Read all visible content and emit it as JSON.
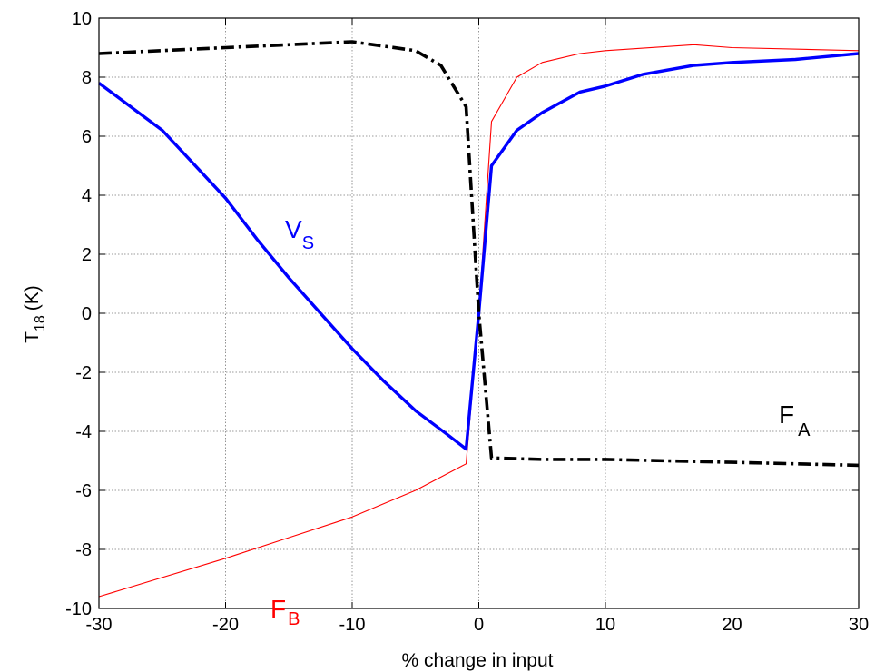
{
  "chart_data": {
    "type": "line",
    "title": "",
    "xlabel": "% change in input",
    "ylabel": {
      "main": "T",
      "sub": "18",
      "unit": "(K)"
    },
    "xlim": [
      -30,
      30
    ],
    "ylim": [
      -10,
      10
    ],
    "x_ticks": [
      -30,
      -20,
      -10,
      0,
      10,
      20,
      30
    ],
    "y_ticks": [
      -10,
      -8,
      -6,
      -4,
      -2,
      0,
      2,
      4,
      6,
      8,
      10
    ],
    "grid": true,
    "series": [
      {
        "label_main": "V",
        "label_sub": "S",
        "color": "#0000ff",
        "style": "solid-thick",
        "x": [
          -30,
          -25,
          -20,
          -17.5,
          -15,
          -12.5,
          -10,
          -7.5,
          -5,
          -2.5,
          -1,
          0,
          1,
          3,
          5,
          8,
          10,
          13,
          17,
          20,
          25,
          30
        ],
        "y": [
          7.8,
          6.2,
          3.9,
          2.5,
          1.2,
          0.0,
          -1.2,
          -2.3,
          -3.3,
          -4.1,
          -4.6,
          0.0,
          5.0,
          6.2,
          6.8,
          7.5,
          7.7,
          8.1,
          8.4,
          8.5,
          8.6,
          8.8
        ]
      },
      {
        "label_main": "F",
        "label_sub": "A",
        "color": "#000000",
        "style": "dash-dot-thick",
        "x": [
          -30,
          -20,
          -10,
          -5,
          -3,
          -1,
          0,
          1,
          5,
          10,
          20,
          30
        ],
        "y": [
          8.8,
          9.0,
          9.2,
          8.9,
          8.4,
          7.0,
          0.0,
          -4.9,
          -4.95,
          -4.95,
          -5.05,
          -5.15
        ],
        "label_pos": [
          24,
          -3.9
        ]
      },
      {
        "label_main": "F",
        "label_sub": "B",
        "color": "#ff0000",
        "style": "solid-thin",
        "x": [
          -30,
          -20,
          -15,
          -10,
          -5,
          -1,
          0,
          1,
          3,
          5,
          8,
          10,
          17,
          20,
          30
        ],
        "y": [
          -9.6,
          -8.3,
          -7.6,
          -6.9,
          -6.0,
          -5.1,
          0.0,
          6.5,
          8.0,
          8.5,
          8.8,
          8.9,
          9.1,
          9.0,
          8.9
        ]
      }
    ]
  }
}
